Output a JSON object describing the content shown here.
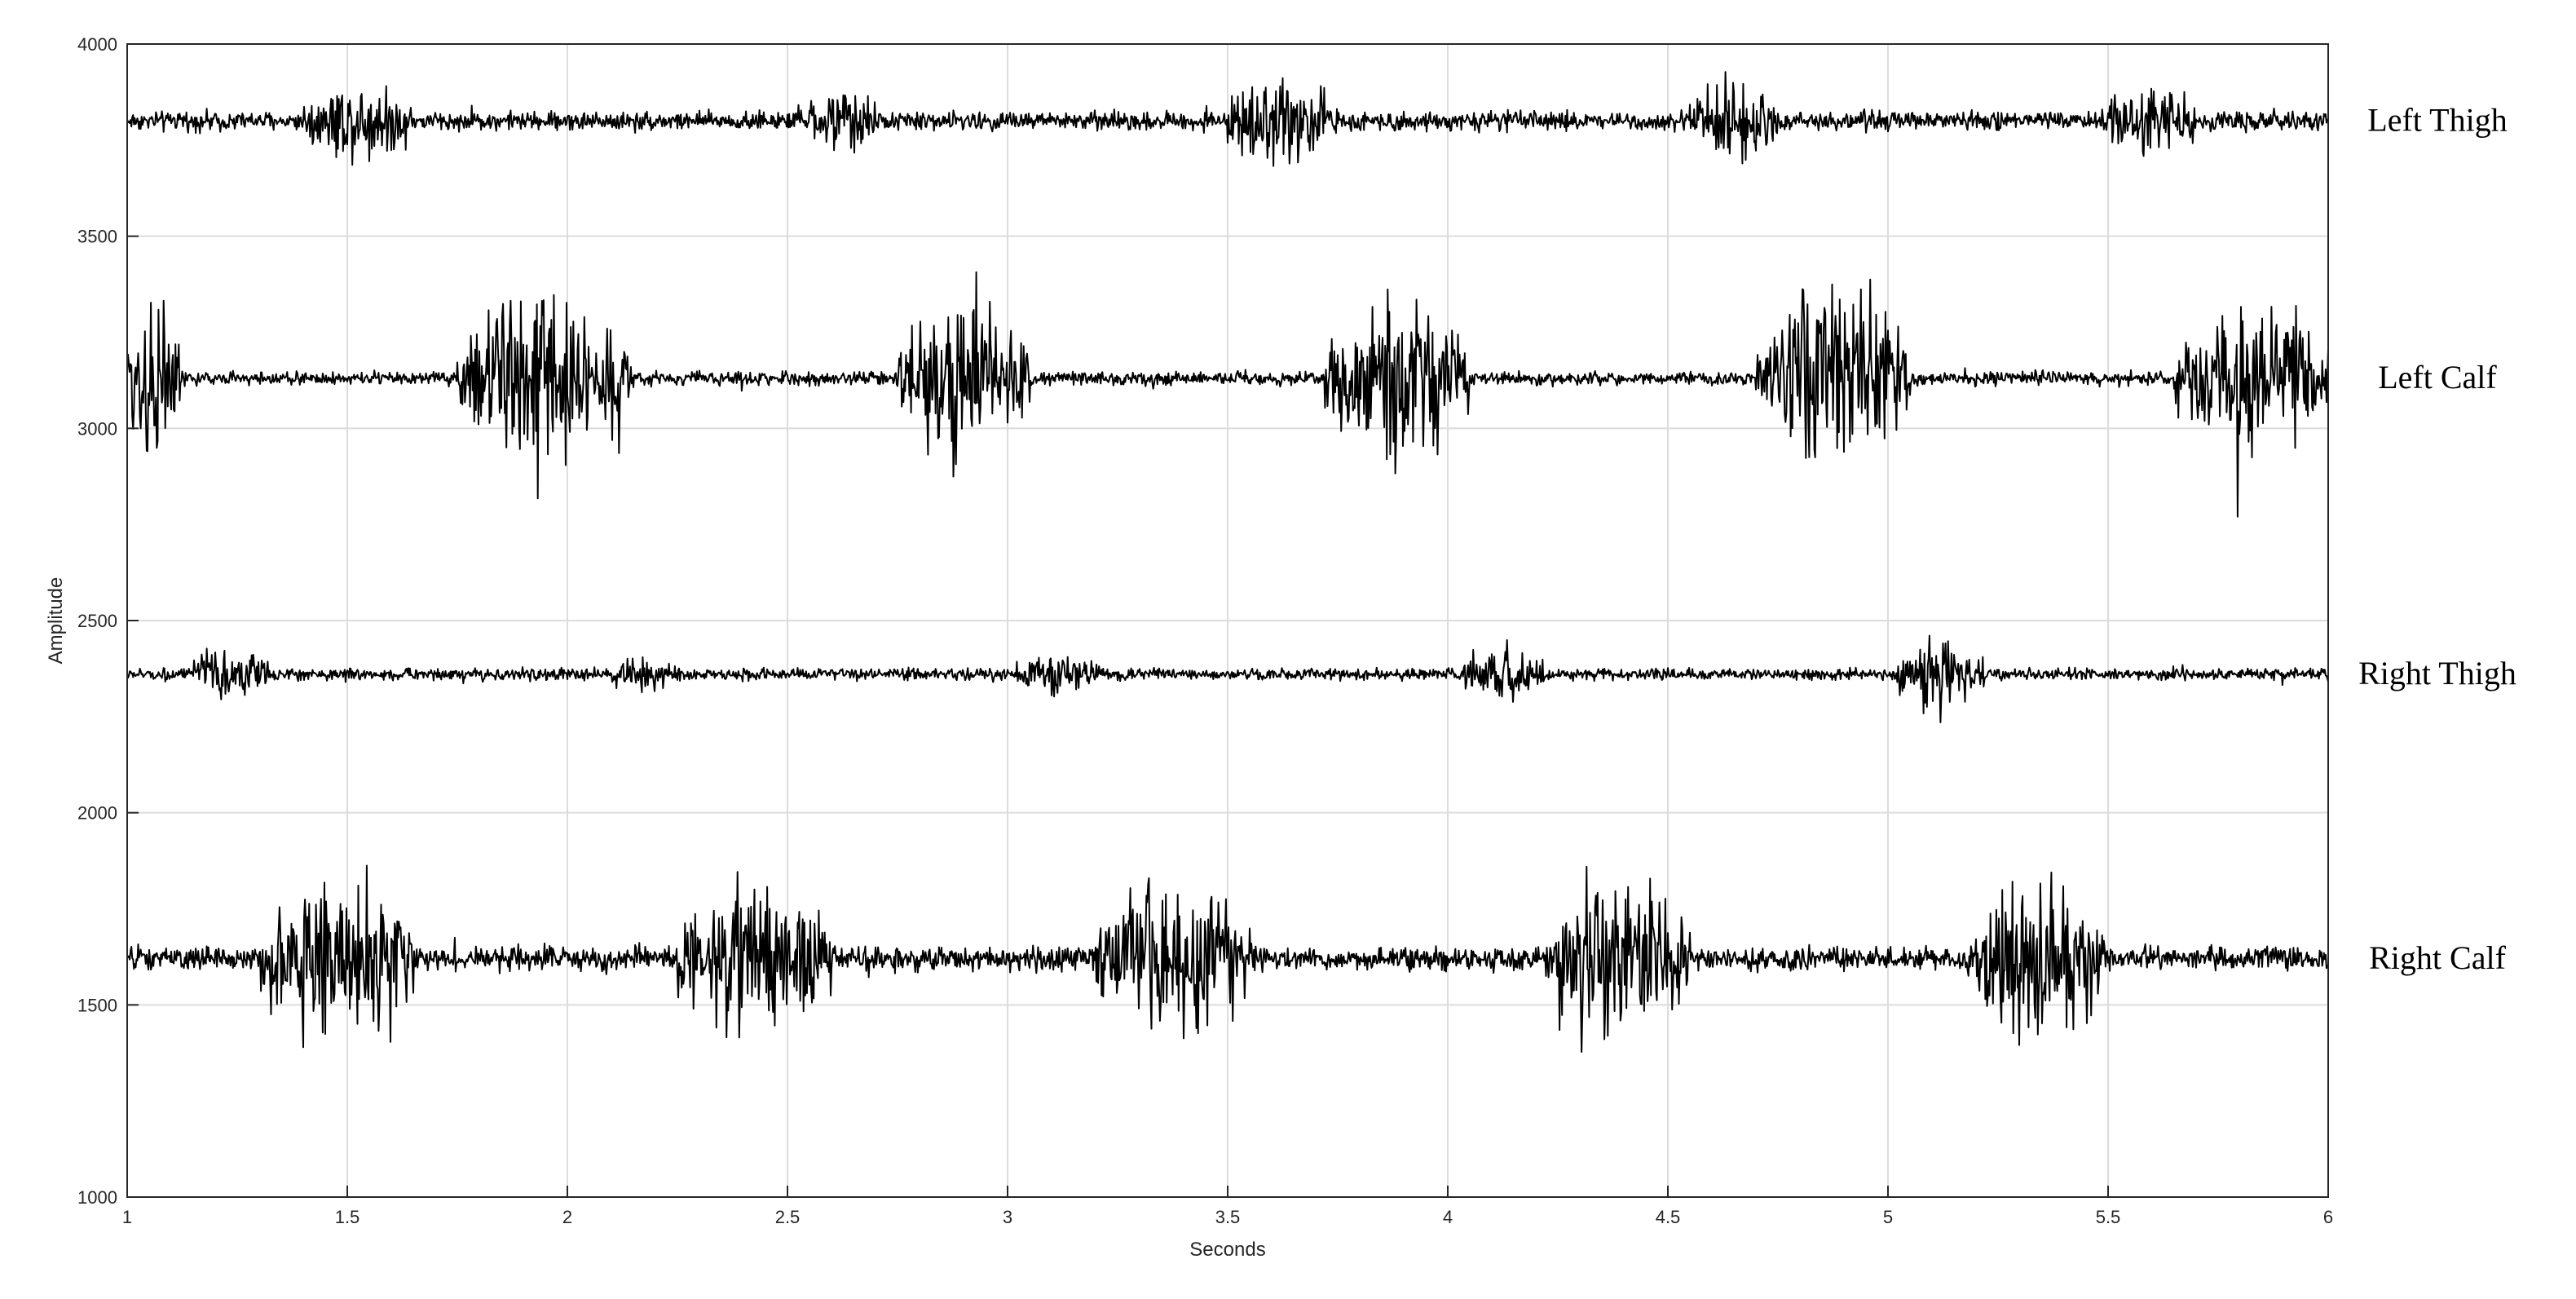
{
  "chart_data": {
    "type": "line",
    "title": "",
    "xlabel": "Seconds",
    "ylabel": "Amplitude",
    "xlim": [
      1,
      6
    ],
    "ylim": [
      1000,
      4000
    ],
    "xticks": [
      1,
      1.5,
      2,
      2.5,
      3,
      3.5,
      4,
      4.5,
      5,
      5.5,
      6
    ],
    "xtick_labels": [
      "1",
      "1.5",
      "2",
      "2.5",
      "3",
      "3.5",
      "4",
      "4.5",
      "5",
      "5.5",
      "6"
    ],
    "yticks": [
      1000,
      1500,
      2000,
      2500,
      3000,
      3500,
      4000
    ],
    "ytick_labels": [
      "1000",
      "1500",
      "2000",
      "2500",
      "3000",
      "3500",
      "4000"
    ],
    "grid": true,
    "line_color": "#000000",
    "series": [
      {
        "name": "Left Thigh",
        "baseline": 3800,
        "noise_amplitude": 35,
        "bursts": [
          {
            "start": 1.4,
            "end": 1.65,
            "amplitude": 110
          },
          {
            "start": 2.55,
            "end": 2.7,
            "amplitude": 90
          },
          {
            "start": 3.5,
            "end": 3.75,
            "amplitude": 120
          },
          {
            "start": 4.55,
            "end": 4.75,
            "amplitude": 110
          },
          {
            "start": 5.5,
            "end": 5.7,
            "amplitude": 110
          }
        ]
      },
      {
        "name": "Left Calf",
        "baseline": 3130,
        "noise_amplitude": 25,
        "bursts": [
          {
            "start": 1.0,
            "end": 1.12,
            "amplitude": 330
          },
          {
            "start": 1.75,
            "end": 2.15,
            "amplitude": 290
          },
          {
            "start": 2.75,
            "end": 3.05,
            "amplitude": 300
          },
          {
            "start": 3.72,
            "end": 4.05,
            "amplitude": 280
          },
          {
            "start": 4.7,
            "end": 5.05,
            "amplitude": 320
          },
          {
            "start": 5.65,
            "end": 6.0,
            "amplitude": 270
          }
        ]
      },
      {
        "name": "Right Thigh",
        "baseline": 2360,
        "noise_amplitude": 22,
        "bursts": [
          {
            "start": 1.15,
            "end": 1.32,
            "amplitude": 75
          },
          {
            "start": 2.1,
            "end": 2.25,
            "amplitude": 45
          },
          {
            "start": 3.02,
            "end": 3.22,
            "amplitude": 60
          },
          {
            "start": 4.02,
            "end": 4.22,
            "amplitude": 85
          },
          {
            "start": 5.02,
            "end": 5.22,
            "amplitude": 100
          }
        ]
      },
      {
        "name": "Right Calf",
        "baseline": 1620,
        "noise_amplitude": 45,
        "bursts": [
          {
            "start": 1.3,
            "end": 1.65,
            "amplitude": 250
          },
          {
            "start": 2.25,
            "end": 2.6,
            "amplitude": 240
          },
          {
            "start": 3.2,
            "end": 3.55,
            "amplitude": 250
          },
          {
            "start": 4.22,
            "end": 4.55,
            "amplitude": 260
          },
          {
            "start": 5.2,
            "end": 5.5,
            "amplitude": 240
          }
        ]
      }
    ]
  }
}
